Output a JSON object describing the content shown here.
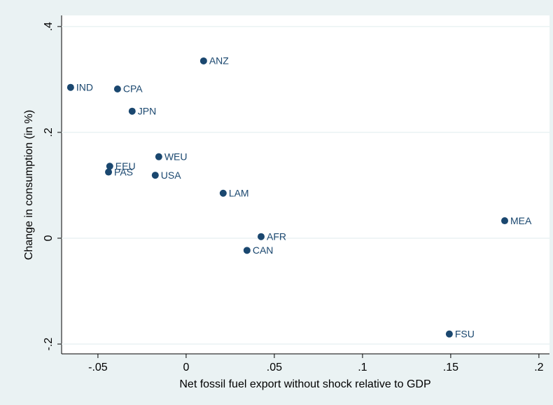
{
  "chart_data": {
    "type": "scatter",
    "xlabel": "Net fossil fuel export without shock relative to GDP",
    "ylabel": "Change in consumption (in %)",
    "labels": [
      "IND",
      "CPA",
      "JPN",
      "ANZ",
      "WEU",
      "EEU",
      "PAS",
      "USA",
      "LAM",
      "AFR",
      "CAN",
      "MEA",
      "FSU"
    ],
    "x": [
      -0.0655,
      -0.0389,
      -0.0306,
      0.0099,
      -0.0155,
      -0.0433,
      -0.044,
      -0.0175,
      0.021,
      0.0425,
      0.0345,
      0.1806,
      0.1492
    ],
    "values": [
      0.285,
      0.282,
      0.24,
      0.335,
      0.154,
      0.136,
      0.125,
      0.119,
      0.085,
      0.003,
      -0.023,
      0.033,
      -0.181
    ],
    "color": "#1a476f",
    "xlim": [
      -0.0706,
      0.206
    ],
    "ylim": [
      -0.2185,
      0.421
    ],
    "xticks": [
      {
        "value": -0.05,
        "label": "-.05"
      },
      0,
      {
        "value": 0.05,
        "label": ".05"
      },
      {
        "value": 0.1,
        "label": ".1"
      },
      {
        "value": 0.15,
        "label": ".15"
      },
      {
        "value": 0.2,
        "label": ".2"
      }
    ],
    "yticks": [
      {
        "value": -0.2,
        "label": "-.2"
      },
      0,
      {
        "value": 0.2,
        "label": ".2"
      },
      {
        "value": 0.4,
        "label": ".4"
      }
    ],
    "grid": true
  }
}
